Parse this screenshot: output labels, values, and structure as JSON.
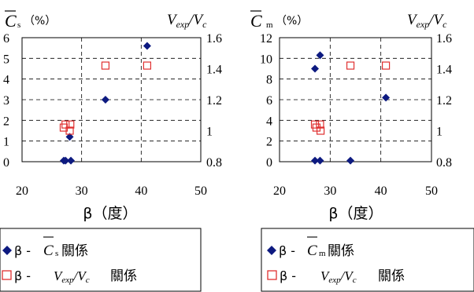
{
  "chart_data": [
    {
      "type": "scatter",
      "left_axis": {
        "label_symbol": "C",
        "label_sub": "s",
        "label_unit": "（%）",
        "ylim": [
          0,
          6
        ],
        "ticks": [
          "0",
          "1",
          "2",
          "3",
          "4",
          "5",
          "6"
        ]
      },
      "right_axis": {
        "label": "Vexp/Vc",
        "ylim": [
          0.8,
          1.6
        ],
        "ticks": [
          "0.8",
          "1",
          "1.2",
          "1.4",
          "1.6"
        ]
      },
      "x_axis": {
        "label": "β（度）",
        "xlim": [
          20,
          50
        ],
        "ticks": [
          "20",
          "30",
          "40",
          "50"
        ]
      },
      "grid": true,
      "series": [
        {
          "axis": "left",
          "marker": "diamond",
          "color": "#0d1a80",
          "points": [
            [
              27,
              0.05
            ],
            [
              27.3,
              0.05
            ],
            [
              28.2,
              0.05
            ],
            [
              28,
              1.2
            ],
            [
              34,
              3.0
            ],
            [
              41,
              5.6
            ]
          ]
        },
        {
          "axis": "right",
          "marker": "open-square",
          "color": "#e03030",
          "points": [
            [
              27,
              1.02
            ],
            [
              27.3,
              1.04
            ],
            [
              28,
              1.0
            ],
            [
              28.1,
              1.04
            ],
            [
              34,
              1.42
            ],
            [
              41,
              1.42
            ]
          ]
        }
      ],
      "legend": {
        "item1_prefix": "β - ",
        "item1_symbol": "C",
        "item1_sub": "s",
        "item1_suffix": "關係",
        "item2_prefix": "β - ",
        "item2_ratio": "Vexp/Vc",
        "item2_suffix": "關係",
        "placement": "bottom"
      }
    },
    {
      "type": "scatter",
      "left_axis": {
        "label_symbol": "C",
        "label_sub": "m",
        "label_unit": "（%）",
        "ylim": [
          0,
          12
        ],
        "ticks": [
          "0",
          "2",
          "4",
          "6",
          "8",
          "10",
          "12"
        ]
      },
      "right_axis": {
        "label": "Vexp/Vc",
        "ylim": [
          0.8,
          1.6
        ],
        "ticks": [
          "0.8",
          "1",
          "1.2",
          "1.4",
          "1.6"
        ]
      },
      "x_axis": {
        "label": "β（度）",
        "xlim": [
          20,
          50
        ],
        "ticks": [
          "20",
          "30",
          "40",
          "50"
        ]
      },
      "grid": true,
      "series": [
        {
          "axis": "left",
          "marker": "diamond",
          "color": "#0d1a80",
          "points": [
            [
              27,
              0.1
            ],
            [
              28,
              0.1
            ],
            [
              34,
              0.1
            ],
            [
              27,
              9.0
            ],
            [
              28,
              10.3
            ],
            [
              41,
              6.2
            ]
          ]
        },
        {
          "axis": "right",
          "marker": "open-square",
          "color": "#e03030",
          "points": [
            [
              27,
              1.04
            ],
            [
              27.3,
              1.02
            ],
            [
              28,
              1.04
            ],
            [
              28.1,
              1.0
            ],
            [
              34,
              1.42
            ],
            [
              41,
              1.42
            ]
          ]
        }
      ],
      "legend": {
        "item1_prefix": "β - ",
        "item1_symbol": "C",
        "item1_sub": "m",
        "item1_suffix": "關係",
        "item2_prefix": "β - ",
        "item2_ratio": "Vexp/Vc",
        "item2_suffix": "關係",
        "placement": "bottom"
      }
    }
  ]
}
